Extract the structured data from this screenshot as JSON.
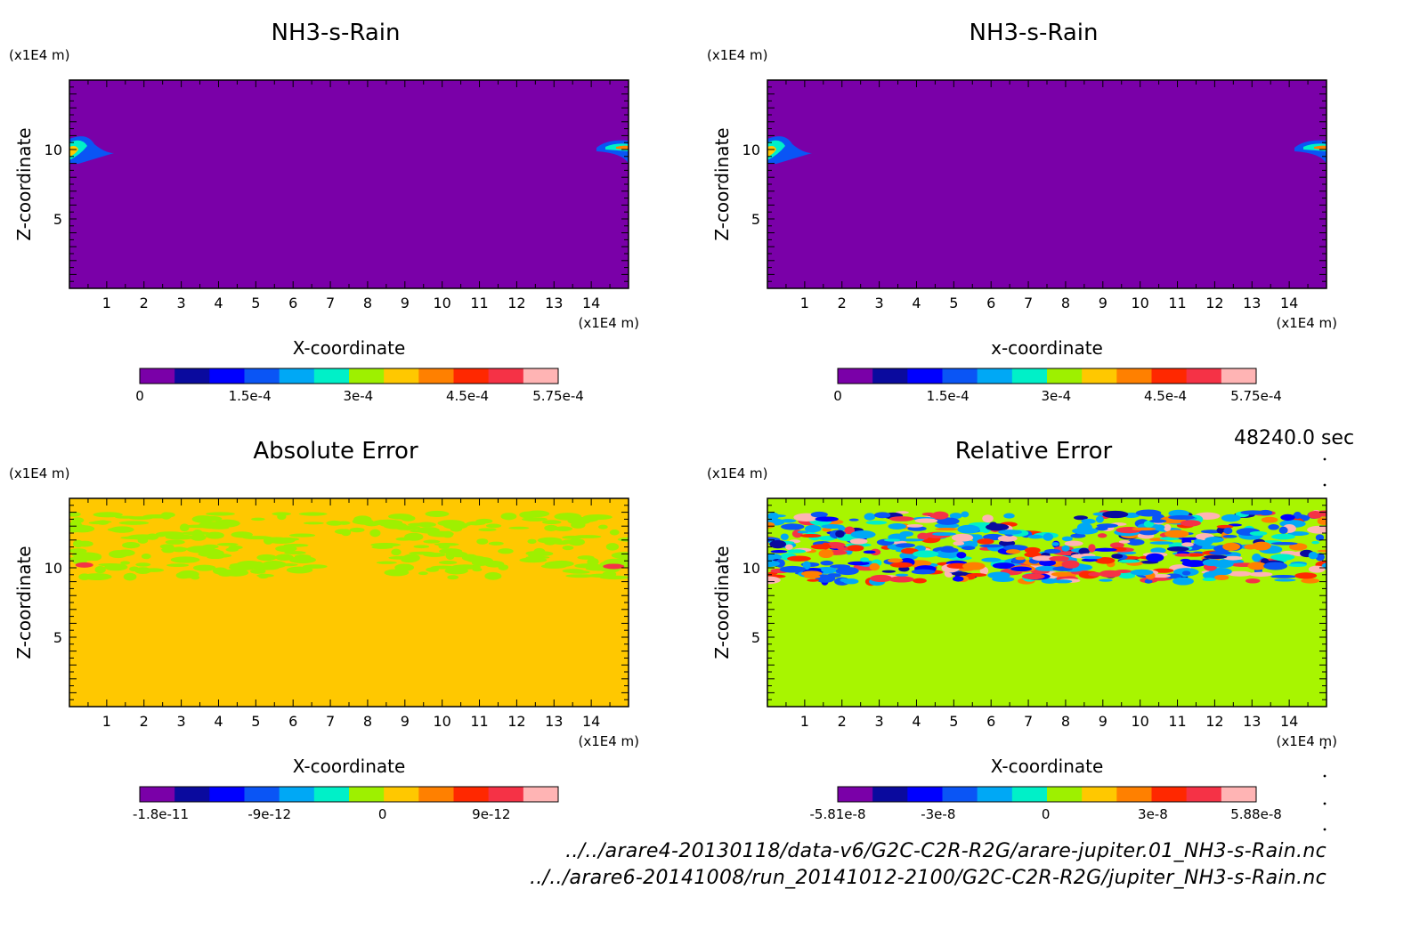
{
  "colors": {
    "rain_background": "#7a00a8",
    "abs_background": "#ffc800",
    "rel_background": "#a8f500",
    "palette": [
      "#7a00a8",
      "#0a0a9e",
      "#0000ff",
      "#0a55f5",
      "#00a8f5",
      "#00f0c8",
      "#9ef000",
      "#ffc800",
      "#ff8000",
      "#ff2800",
      "#f53246",
      "#ffb4b4"
    ]
  },
  "time_label": "48240.0 sec",
  "footer": {
    "line1": "../../arare4-20130118/data-v6/G2C-C2R-R2G/arare-jupiter.01_NH3-s-Rain.nc",
    "line2": "../../arare6-20141008/run_20141012-2100/G2C-C2R-R2G/jupiter_NH3-s-Rain.nc"
  },
  "chart_data": [
    {
      "type": "heatmap",
      "title": "NH3-s-Rain",
      "xlabel": "X-coordinate",
      "ylabel": "Z-coordinate",
      "x_unit": "(x1E4 m)",
      "z_unit": "(x1E4 m)",
      "xlim": [
        0,
        15
      ],
      "zlim": [
        0,
        15
      ],
      "x_ticks": [
        "1",
        "2",
        "3",
        "4",
        "5",
        "6",
        "7",
        "8",
        "9",
        "10",
        "11",
        "12",
        "13",
        "14"
      ],
      "z_ticks": [
        "5",
        "10"
      ],
      "colorbar_range": [
        0,
        0.000575
      ],
      "colorbar_labels": [
        "0",
        "1.5e-4",
        "3e-4",
        "4.5e-4",
        "5.75e-4"
      ],
      "field_description": "near-zero everywhere except small rain patches at x≈0-1, z≈10 and x≈14-15, z≈10"
    },
    {
      "type": "heatmap",
      "title": "NH3-s-Rain",
      "xlabel": "x-coordinate",
      "ylabel": "Z-coordinate",
      "x_unit": "(x1E4 m)",
      "z_unit": "(x1E4 m)",
      "xlim": [
        0,
        15
      ],
      "zlim": [
        0,
        15
      ],
      "x_ticks": [
        "1",
        "2",
        "3",
        "4",
        "5",
        "6",
        "7",
        "8",
        "9",
        "10",
        "11",
        "12",
        "13",
        "14"
      ],
      "z_ticks": [
        "5",
        "10"
      ],
      "colorbar_range": [
        0,
        0.000575
      ],
      "colorbar_labels": [
        "0",
        "1.5e-4",
        "3e-4",
        "4.5e-4",
        "5.75e-4"
      ],
      "field_description": "near-zero everywhere except small rain patches at x≈0-1, z≈10 and x≈14-15, z≈10"
    },
    {
      "type": "heatmap",
      "title": "Absolute Error",
      "xlabel": "X-coordinate",
      "ylabel": "Z-coordinate",
      "x_unit": "(x1E4 m)",
      "z_unit": "(x1E4 m)",
      "xlim": [
        0,
        15
      ],
      "zlim": [
        0,
        15
      ],
      "x_ticks": [
        "1",
        "2",
        "3",
        "4",
        "5",
        "6",
        "7",
        "8",
        "9",
        "10",
        "11",
        "12",
        "13",
        "14"
      ],
      "z_ticks": [
        "5",
        "10"
      ],
      "colorbar_range": [
        -1.8e-11,
        1.8e-11
      ],
      "colorbar_labels": [
        "-1.8e-11",
        "-9e-12",
        "0",
        "9e-12"
      ],
      "field_description": "zero background; small negative noise between z≈9 and z≈14"
    },
    {
      "type": "heatmap",
      "title": "Relative Error",
      "xlabel": "X-coordinate",
      "ylabel": "Z-coordinate",
      "x_unit": "(x1E4 m)",
      "z_unit": "(x1E4 m)",
      "xlim": [
        0,
        15
      ],
      "zlim": [
        0,
        15
      ],
      "x_ticks": [
        "1",
        "2",
        "3",
        "4",
        "5",
        "6",
        "7",
        "8",
        "9",
        "10",
        "11",
        "12",
        "13",
        "14"
      ],
      "z_ticks": [
        "5",
        "10"
      ],
      "colorbar_range": [
        -5.81e-08,
        5.88e-08
      ],
      "colorbar_labels": [
        "-5.81e-8",
        "-3e-8",
        "0",
        "3e-8",
        "5.88e-8"
      ],
      "field_description": "zero background; mixed positive/negative noise band between z≈9 and z≈14"
    }
  ]
}
